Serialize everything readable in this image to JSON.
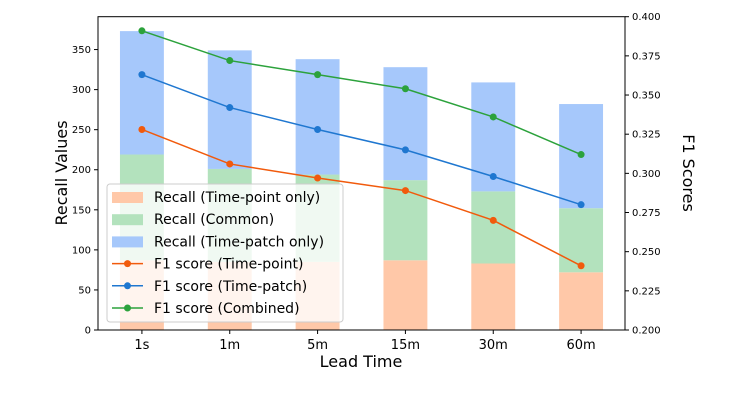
{
  "chart_data": {
    "type": "bar",
    "stacked": true,
    "categories": [
      "1s",
      "1m",
      "5m",
      "15m",
      "30m",
      "60m"
    ],
    "xlabel": "Lead Time",
    "ylabel": "Recall Values",
    "y2label": "F1 Scores",
    "ylim": [
      0,
      391
    ],
    "y2lim": [
      0.2,
      0.4
    ],
    "yticks": [
      "0",
      "50",
      "100",
      "150",
      "200",
      "250",
      "300",
      "350"
    ],
    "y2ticks": [
      "0.200",
      "0.225",
      "0.250",
      "0.275",
      "0.300",
      "0.325",
      "0.350",
      "0.375",
      "0.400"
    ],
    "grid": false,
    "legend_position": "lower-left",
    "bar_series": [
      {
        "name": "Recall (Time-point only)",
        "color": "#ffc8a8",
        "values": [
          87,
          85,
          85,
          87,
          83,
          72
        ]
      },
      {
        "name": "Recall (Common)",
        "color": "#b3e2bd",
        "values": [
          132,
          116,
          109,
          100,
          90,
          80
        ]
      },
      {
        "name": "Recall (Time-patch only)",
        "color": "#a6c8fb",
        "values": [
          154,
          148,
          144,
          141,
          136,
          130
        ]
      }
    ],
    "line_series": [
      {
        "name": "F1 score (Time-point)",
        "color": "#f15a0c",
        "values": [
          0.328,
          0.306,
          0.297,
          0.289,
          0.27,
          0.241
        ]
      },
      {
        "name": "F1 score (Time-patch)",
        "color": "#1f77d0",
        "values": [
          0.363,
          0.342,
          0.328,
          0.315,
          0.298,
          0.28
        ]
      },
      {
        "name": "F1 score (Combined)",
        "color": "#2ca23c",
        "values": [
          0.391,
          0.372,
          0.363,
          0.354,
          0.336,
          0.312
        ]
      }
    ]
  }
}
